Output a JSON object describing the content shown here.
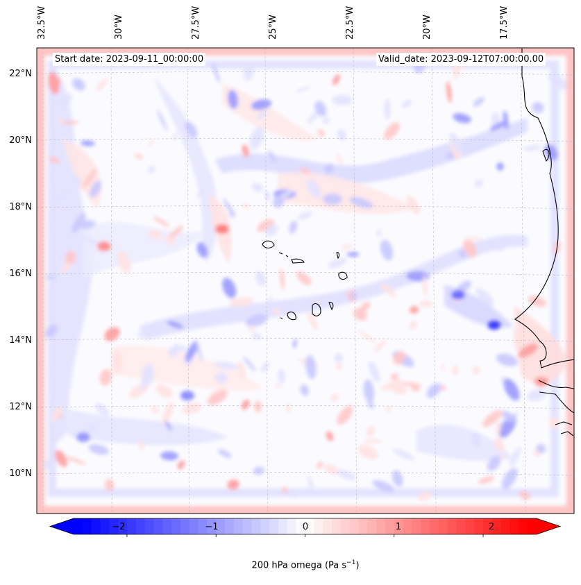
{
  "map": {
    "start_date_label": "Start date: 2023-09-11_00:00:00",
    "valid_date_label": "Valid_date: 2023-09-12T07:00:00.00",
    "lon_labels": [
      "32.5°W",
      "30°W",
      "27.5°W",
      "25°W",
      "22.5°W",
      "20°W",
      "17.5°W"
    ],
    "lat_labels": [
      "22°N",
      "20°N",
      "18°N",
      "16°N",
      "14°N",
      "12°N",
      "10°N"
    ],
    "field_name": "200 hPa omega",
    "colormap": "bwr",
    "colors": {
      "neg": "#0000ff",
      "zero": "#ffffff",
      "pos": "#ff0000",
      "coast": "#000000"
    }
  },
  "colorbar": {
    "min": -2.6,
    "max": 2.6,
    "extend": "both",
    "ticks": [
      "−2",
      "−1",
      "0",
      "1",
      "2"
    ],
    "tick_values": [
      -2,
      -1,
      0,
      1,
      2
    ],
    "label_prefix": "200 hPa omega (Pa s",
    "label_exp": "−1",
    "label_suffix": ")"
  }
}
